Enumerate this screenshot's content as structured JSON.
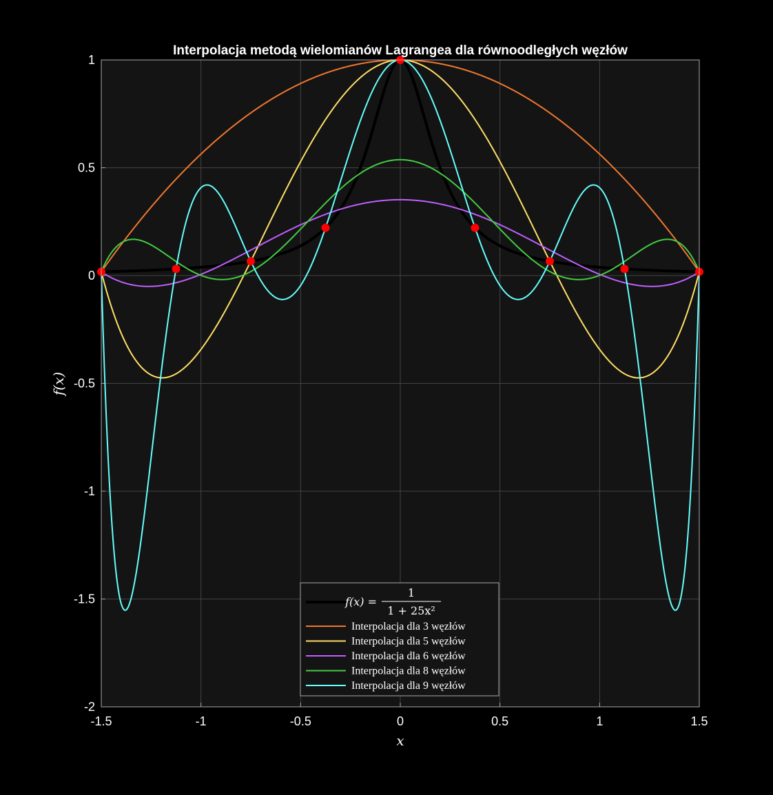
{
  "chart_data": {
    "type": "line",
    "title": "Interpolacja metodą wielomianów Lagrangea dla równoodległych węzłów",
    "xlabel": "x",
    "ylabel": "f(x)",
    "xlim": [
      -1.5,
      1.5
    ],
    "ylim": [
      -2,
      1
    ],
    "xticks": [
      -1.5,
      -1,
      -0.5,
      0,
      0.5,
      1,
      1.5
    ],
    "yticks": [
      -2,
      -1.5,
      -1,
      -0.5,
      0,
      0.5,
      1
    ],
    "xtick_labels": [
      "-1.5",
      "-1",
      "-0.5",
      "0",
      "0.5",
      "1",
      "1.5"
    ],
    "ytick_labels": [
      "-2",
      "-1.5",
      "-1",
      "-0.5",
      "0",
      "0.5",
      "1"
    ],
    "grid": true,
    "legend_position": "bottom-center",
    "background": "#141414",
    "function": {
      "name_lhs": "f(x) =",
      "name_num": "1",
      "name_den": "1 + 25x²",
      "color": "#000000",
      "formula": "1/(1+25x^2)"
    },
    "series": [
      {
        "name": "Interpolacja dla 3 węzłów",
        "nodes": 3,
        "color": "#f07830"
      },
      {
        "name": "Interpolacja dla 5 węzłów",
        "nodes": 5,
        "color": "#ffe066"
      },
      {
        "name": "Interpolacja dla 6 węzłów",
        "nodes": 6,
        "color": "#bf5fff"
      },
      {
        "name": "Interpolacja dla 8 węzłów",
        "nodes": 8,
        "color": "#44cc44"
      },
      {
        "name": "Interpolacja dla 9 węzłów",
        "nodes": 9,
        "color": "#66ffff"
      }
    ],
    "markers": {
      "color": "#ff0000",
      "x": [
        -1.5,
        -1.125,
        -0.75,
        -0.375,
        0,
        0.375,
        0.75,
        1.125,
        1.5
      ],
      "y": [
        0.0175,
        0.0307,
        0.0664,
        0.2215,
        1,
        0.2215,
        0.0664,
        0.0307,
        0.0175
      ]
    }
  }
}
